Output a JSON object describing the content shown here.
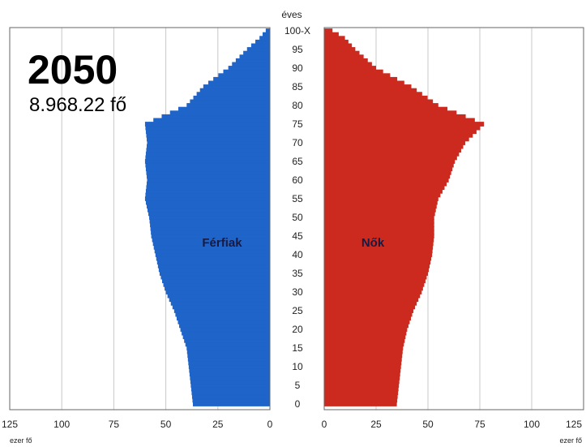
{
  "year": "2050",
  "total": "8.968.22 fő",
  "chart_data": {
    "type": "bar",
    "orientation": "horizontal-population-pyramid",
    "title": "2050",
    "subtitle": "8.968.22 fő",
    "age_axis_label": "éves",
    "age_tick_labels": [
      "0",
      "5",
      "10",
      "15",
      "20",
      "25",
      "30",
      "35",
      "40",
      "45",
      "50",
      "55",
      "60",
      "65",
      "70",
      "75",
      "80",
      "85",
      "90",
      "95",
      "100-X"
    ],
    "x_tick_labels_left": [
      "125",
      "100",
      "75",
      "50",
      "25",
      "0"
    ],
    "x_tick_labels_right": [
      "0",
      "25",
      "50",
      "75",
      "100",
      "125"
    ],
    "x_unit_left": "ezer fő",
    "x_unit_right": "ezer fő",
    "xlim": [
      0,
      125
    ],
    "grid": true,
    "colors": {
      "Férfiak": "#1f64c8",
      "Nők": "#cc2a1f"
    },
    "series": [
      {
        "name": "Férfiak",
        "age_points": [
          0,
          5,
          10,
          15,
          20,
          25,
          30,
          35,
          40,
          45,
          50,
          55,
          60,
          65,
          70,
          75,
          80,
          85,
          90,
          95,
          98,
          100
        ],
        "values": [
          37,
          38,
          39,
          40,
          43,
          46,
          50,
          53,
          55,
          57,
          58,
          60,
          59,
          60,
          59,
          60,
          40,
          32,
          20,
          11,
          5,
          2
        ]
      },
      {
        "name": "Nők",
        "age_points": [
          0,
          5,
          10,
          15,
          20,
          25,
          30,
          35,
          40,
          45,
          50,
          55,
          60,
          65,
          70,
          75,
          80,
          85,
          90,
          95,
          98,
          100
        ],
        "values": [
          35,
          36,
          37,
          38,
          40,
          43,
          47,
          50,
          52,
          53,
          53,
          55,
          60,
          63,
          68,
          77,
          55,
          42,
          25,
          15,
          10,
          4
        ]
      }
    ]
  }
}
